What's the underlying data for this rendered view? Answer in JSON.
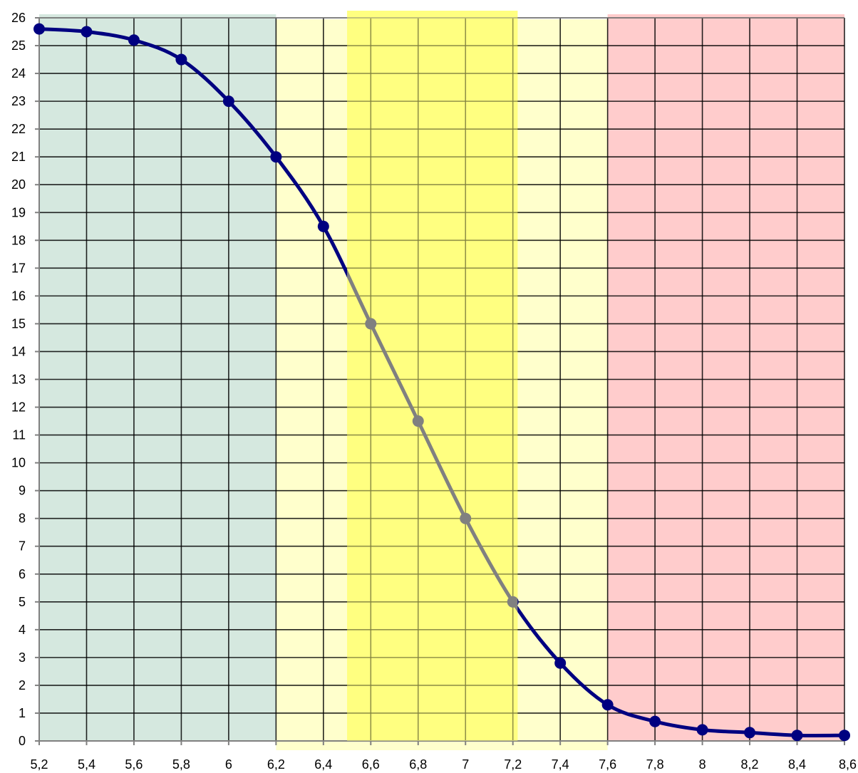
{
  "chart_data": {
    "type": "line",
    "title": "",
    "xlabel": "",
    "ylabel": "",
    "xlim": [
      5.2,
      8.6
    ],
    "ylim": [
      0,
      26
    ],
    "grid": true,
    "x_ticks": [
      5.2,
      5.4,
      5.6,
      5.8,
      6.0,
      6.2,
      6.4,
      6.6,
      6.8,
      7.0,
      7.2,
      7.4,
      7.6,
      7.8,
      8.0,
      8.2,
      8.4,
      8.6
    ],
    "x_tick_labels": [
      "5,2",
      "5,4",
      "5,6",
      "5,8",
      "6",
      "6,2",
      "6,4",
      "6,6",
      "6,8",
      "7",
      "7,2",
      "7,4",
      "7,6",
      "7,8",
      "8",
      "8,2",
      "8,4",
      "8,6"
    ],
    "y_ticks": [
      0,
      1,
      2,
      3,
      4,
      5,
      6,
      7,
      8,
      9,
      10,
      11,
      12,
      13,
      14,
      15,
      16,
      17,
      18,
      19,
      20,
      21,
      22,
      23,
      24,
      25,
      26
    ],
    "y_tick_labels": [
      "0",
      "1",
      "2",
      "3",
      "4",
      "5",
      "6",
      "7",
      "8",
      "9",
      "10",
      "11",
      "12",
      "13",
      "14",
      "15",
      "16",
      "17",
      "18",
      "19",
      "20",
      "21",
      "22",
      "23",
      "24",
      "25",
      "26"
    ],
    "bands": [
      {
        "x0": 5.2,
        "x1": 6.2,
        "color": "#d5e8df"
      },
      {
        "x0": 6.2,
        "x1": 7.6,
        "color": "#ffffcc"
      },
      {
        "x0": 6.5,
        "x1": 7.22,
        "color": "#ffff80"
      },
      {
        "x0": 7.6,
        "x1": 8.6,
        "color": "#ffcccc"
      }
    ],
    "series": [
      {
        "color": "#000080",
        "x": [
          5.2,
          5.4,
          5.6,
          5.8,
          6.0,
          6.2,
          6.4,
          6.6,
          6.8,
          7.0,
          7.2,
          7.4,
          7.6,
          7.8,
          8.0,
          8.2,
          8.4,
          8.6
        ],
        "y": [
          25.6,
          25.5,
          25.2,
          24.5,
          23.0,
          21.0,
          18.5,
          15.0,
          11.5,
          8.0,
          5.0,
          2.8,
          1.3,
          0.7,
          0.4,
          0.3,
          0.2,
          0.2
        ]
      }
    ]
  }
}
